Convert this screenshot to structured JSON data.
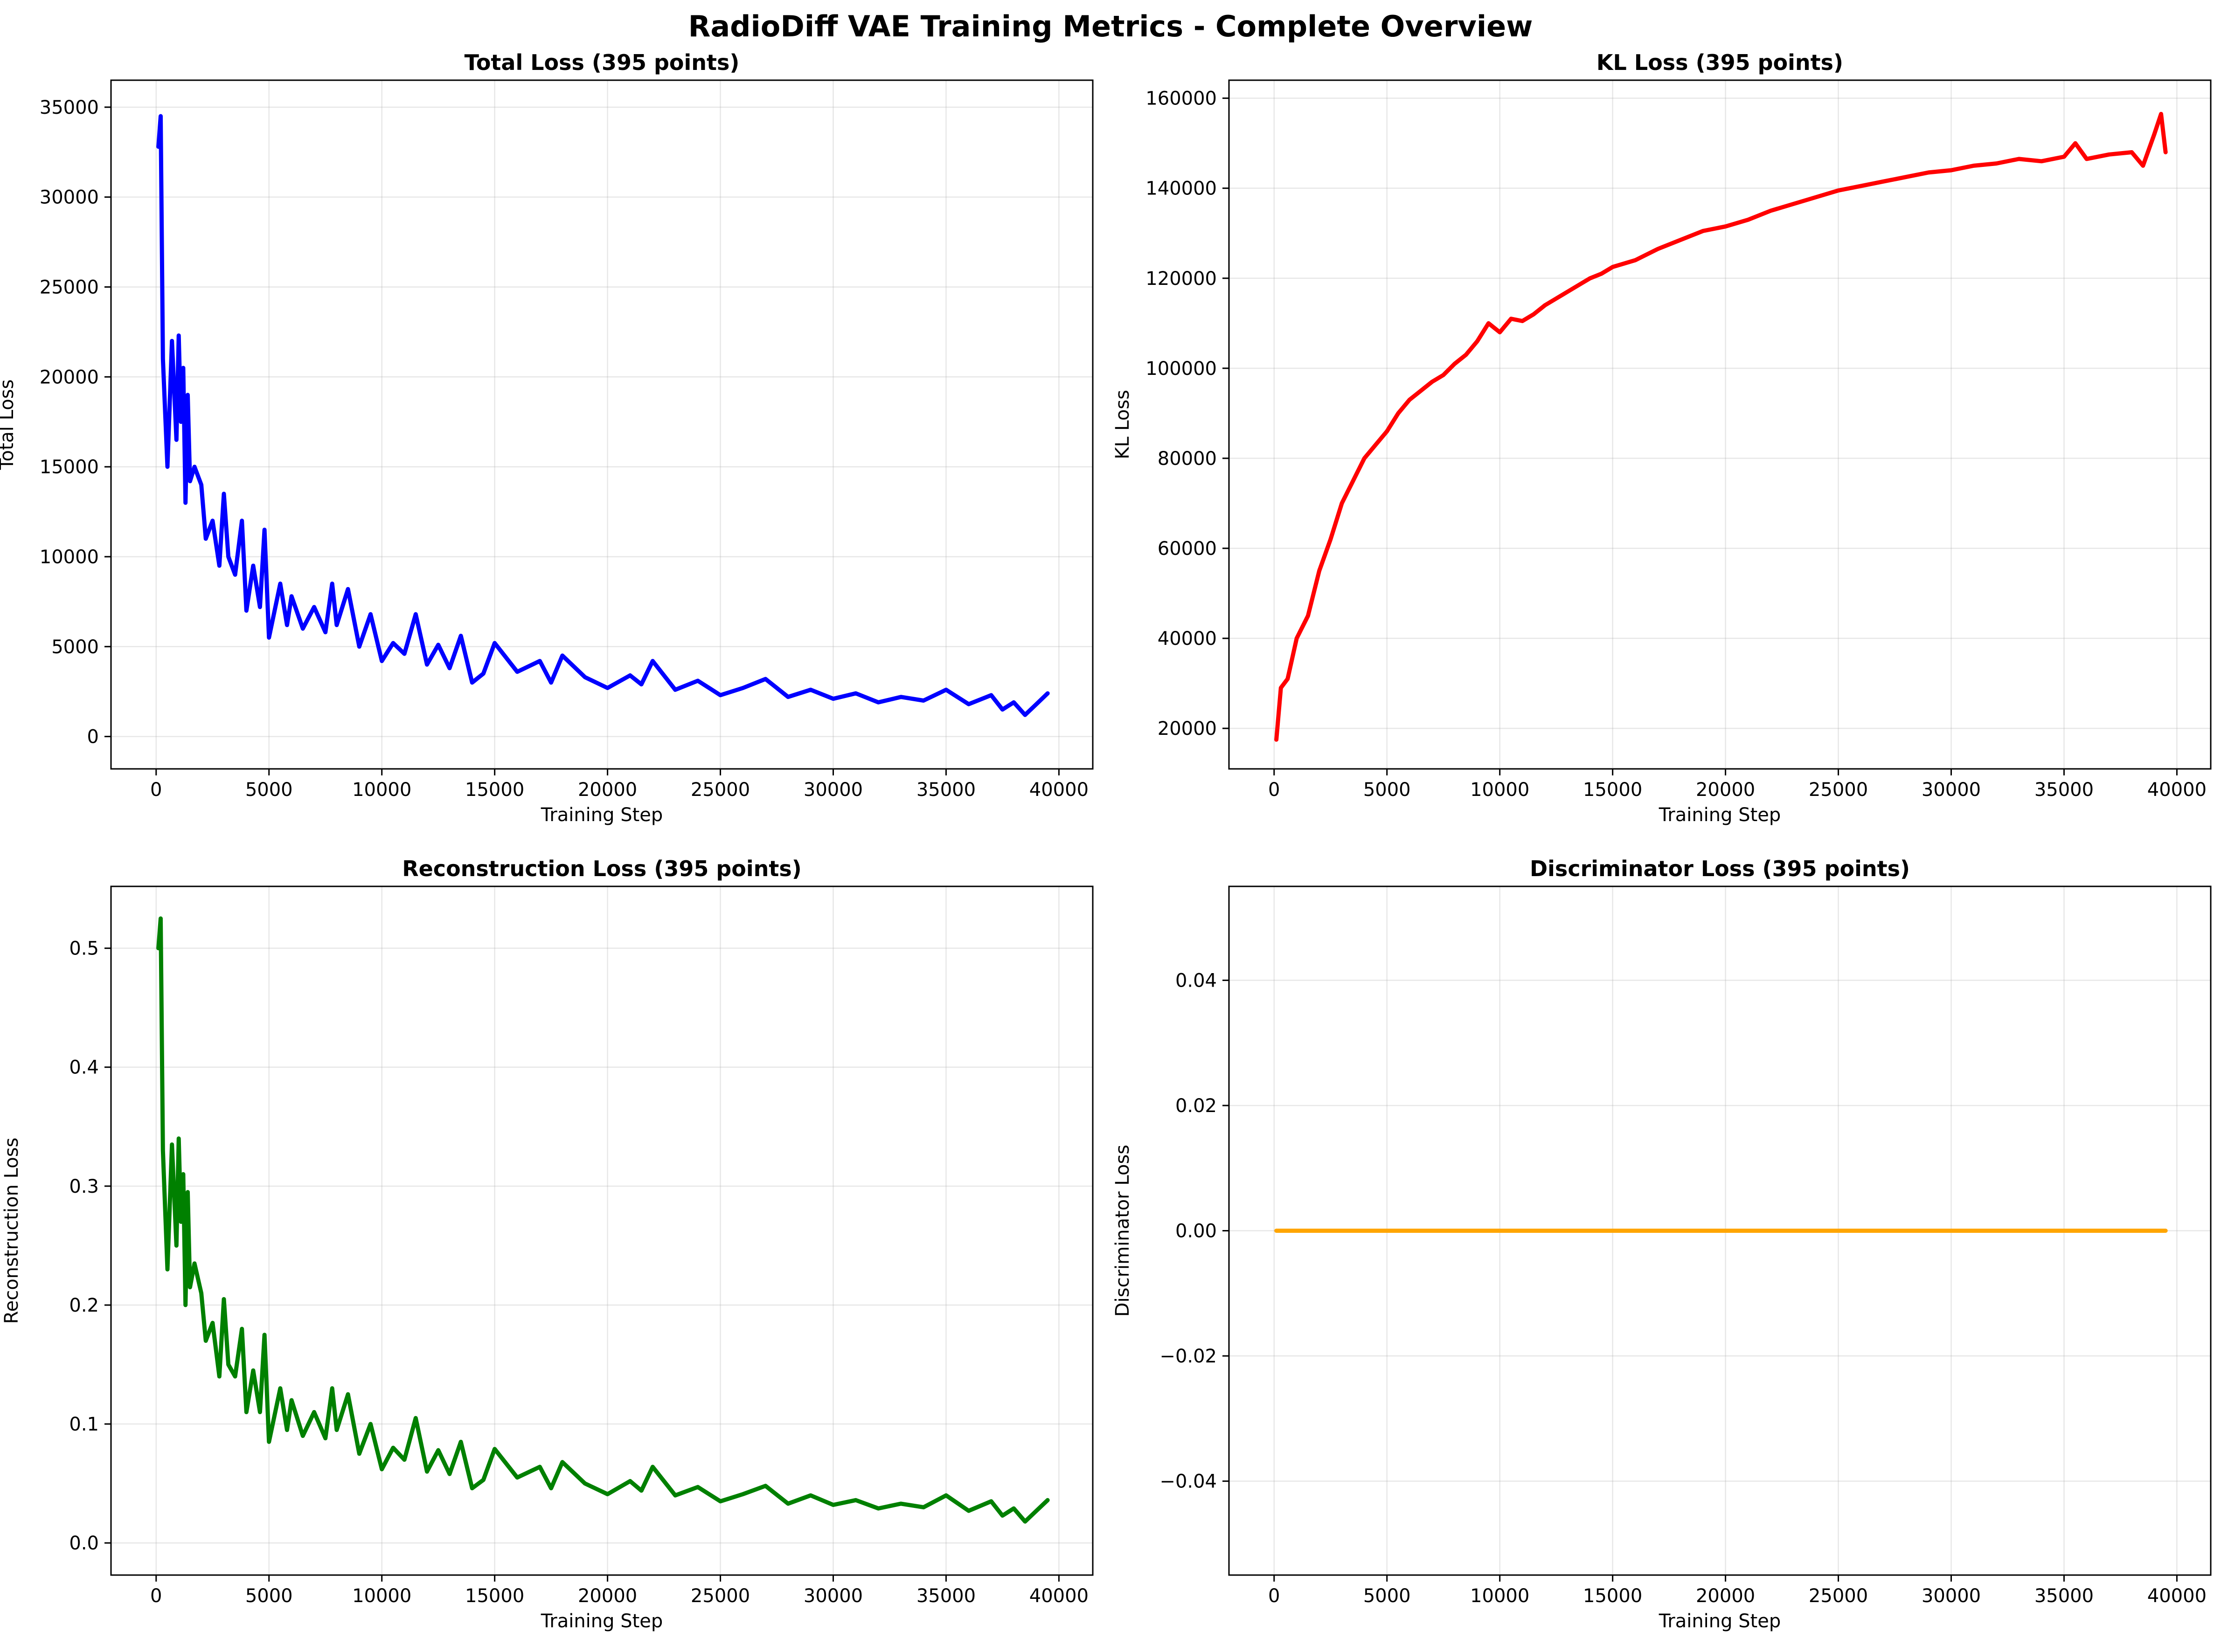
{
  "figure": {
    "title": "RadioDiff VAE Training Metrics - Complete Overview"
  },
  "chart_data": [
    {
      "type": "line",
      "title": "Total Loss (395 points)",
      "xlabel": "Training Step",
      "ylabel": "Total Loss",
      "xlim": [
        -2000,
        41500
      ],
      "ylim": [
        -1800,
        36500
      ],
      "xticks": [
        0,
        5000,
        10000,
        15000,
        20000,
        25000,
        30000,
        35000,
        40000
      ],
      "yticks": [
        0,
        5000,
        10000,
        15000,
        20000,
        25000,
        30000,
        35000
      ],
      "grid": true,
      "color": "#0000ff",
      "series": [
        {
          "x": [
            100,
            200,
            300,
            500,
            700,
            900,
            1000,
            1100,
            1200,
            1300,
            1400,
            1500,
            1700,
            2000,
            2200,
            2500,
            2800,
            3000,
            3200,
            3500,
            3800,
            4000,
            4300,
            4600,
            4800,
            5000,
            5500,
            5800,
            6000,
            6500,
            7000,
            7500,
            7800,
            8000,
            8500,
            9000,
            9500,
            10000,
            10500,
            11000,
            11500,
            12000,
            12500,
            13000,
            13500,
            14000,
            14500,
            15000,
            16000,
            17000,
            17500,
            18000,
            19000,
            20000,
            21000,
            21500,
            22000,
            23000,
            24000,
            25000,
            26000,
            27000,
            28000,
            29000,
            30000,
            31000,
            32000,
            33000,
            34000,
            35000,
            36000,
            37000,
            37500,
            38000,
            38500,
            39000,
            39500
          ],
          "y": [
            32800,
            34500,
            21000,
            15000,
            22000,
            16500,
            22300,
            17500,
            20500,
            13000,
            19000,
            14200,
            15000,
            14000,
            11000,
            12000,
            9500,
            13500,
            10000,
            9000,
            12000,
            7000,
            9500,
            7200,
            11500,
            5500,
            8500,
            6200,
            7800,
            6000,
            7200,
            5800,
            8500,
            6200,
            8200,
            5000,
            6800,
            4200,
            5200,
            4600,
            6800,
            4000,
            5100,
            3800,
            5600,
            3000,
            3500,
            5200,
            3600,
            4200,
            3000,
            4500,
            3300,
            2700,
            3400,
            2900,
            4200,
            2600,
            3100,
            2300,
            2700,
            3200,
            2200,
            2600,
            2100,
            2400,
            1900,
            2200,
            2000,
            2600,
            1800,
            2300,
            1500,
            1900,
            1200,
            1800,
            2400
          ]
        }
      ]
    },
    {
      "type": "line",
      "title": "KL Loss (395 points)",
      "xlabel": "Training Step",
      "ylabel": "KL Loss",
      "xlim": [
        -2000,
        41500
      ],
      "ylim": [
        11000,
        164000
      ],
      "xticks": [
        0,
        5000,
        10000,
        15000,
        20000,
        25000,
        30000,
        35000,
        40000
      ],
      "yticks": [
        20000,
        40000,
        60000,
        80000,
        100000,
        120000,
        140000,
        160000
      ],
      "grid": true,
      "color": "#ff0000",
      "series": [
        {
          "x": [
            100,
            300,
            600,
            1000,
            1500,
            2000,
            2500,
            3000,
            3500,
            4000,
            4500,
            5000,
            5500,
            6000,
            6500,
            7000,
            7500,
            8000,
            8500,
            9000,
            9500,
            10000,
            10500,
            11000,
            11500,
            12000,
            12500,
            13000,
            13500,
            14000,
            14500,
            15000,
            16000,
            17000,
            18000,
            19000,
            20000,
            21000,
            22000,
            23000,
            24000,
            25000,
            26000,
            27000,
            28000,
            29000,
            30000,
            31000,
            32000,
            33000,
            34000,
            35000,
            35500,
            36000,
            37000,
            38000,
            38500,
            39000,
            39300,
            39500
          ],
          "y": [
            17500,
            29000,
            31000,
            40000,
            45000,
            55000,
            62000,
            70000,
            75000,
            80000,
            83000,
            86000,
            90000,
            93000,
            95000,
            97000,
            98500,
            101000,
            103000,
            106000,
            110000,
            108000,
            111000,
            110500,
            112000,
            114000,
            115500,
            117000,
            118500,
            120000,
            121000,
            122500,
            124000,
            126500,
            128500,
            130500,
            131500,
            133000,
            135000,
            136500,
            138000,
            139500,
            140500,
            141500,
            142500,
            143500,
            144000,
            145000,
            145500,
            146500,
            146000,
            147000,
            150000,
            146500,
            147500,
            148000,
            145000,
            152000,
            156500,
            148000
          ]
        }
      ]
    },
    {
      "type": "line",
      "title": "Reconstruction Loss (395 points)",
      "xlabel": "Training Step",
      "ylabel": "Reconstruction Loss",
      "xlim": [
        -2000,
        41500
      ],
      "ylim": [
        -0.027,
        0.552
      ],
      "xticks": [
        0,
        5000,
        10000,
        15000,
        20000,
        25000,
        30000,
        35000,
        40000
      ],
      "yticks": [
        0.0,
        0.1,
        0.2,
        0.3,
        0.4,
        0.5
      ],
      "yticklabels": [
        "0.0",
        "0.1",
        "0.2",
        "0.3",
        "0.4",
        "0.5"
      ],
      "grid": true,
      "color": "#008000",
      "series": [
        {
          "x": [
            100,
            200,
            300,
            500,
            700,
            900,
            1000,
            1100,
            1200,
            1300,
            1400,
            1500,
            1700,
            2000,
            2200,
            2500,
            2800,
            3000,
            3200,
            3500,
            3800,
            4000,
            4300,
            4600,
            4800,
            5000,
            5500,
            5800,
            6000,
            6500,
            7000,
            7500,
            7800,
            8000,
            8500,
            9000,
            9500,
            10000,
            10500,
            11000,
            11500,
            12000,
            12500,
            13000,
            13500,
            14000,
            14500,
            15000,
            16000,
            17000,
            17500,
            18000,
            19000,
            20000,
            21000,
            21500,
            22000,
            23000,
            24000,
            25000,
            26000,
            27000,
            28000,
            29000,
            30000,
            31000,
            32000,
            33000,
            34000,
            35000,
            36000,
            37000,
            37500,
            38000,
            38500,
            39000,
            39500
          ],
          "y": [
            0.5,
            0.525,
            0.33,
            0.23,
            0.335,
            0.25,
            0.34,
            0.27,
            0.31,
            0.2,
            0.295,
            0.215,
            0.235,
            0.21,
            0.17,
            0.185,
            0.14,
            0.205,
            0.15,
            0.14,
            0.18,
            0.11,
            0.145,
            0.11,
            0.175,
            0.085,
            0.13,
            0.095,
            0.12,
            0.09,
            0.11,
            0.088,
            0.13,
            0.095,
            0.125,
            0.075,
            0.1,
            0.062,
            0.08,
            0.07,
            0.105,
            0.06,
            0.078,
            0.058,
            0.085,
            0.046,
            0.053,
            0.079,
            0.055,
            0.064,
            0.046,
            0.068,
            0.05,
            0.041,
            0.052,
            0.044,
            0.064,
            0.04,
            0.047,
            0.035,
            0.041,
            0.048,
            0.033,
            0.04,
            0.032,
            0.036,
            0.029,
            0.033,
            0.03,
            0.04,
            0.027,
            0.035,
            0.023,
            0.029,
            0.018,
            0.027,
            0.036
          ]
        }
      ]
    },
    {
      "type": "line",
      "title": "Discriminator Loss (395 points)",
      "xlabel": "Training Step",
      "ylabel": "Discriminator Loss",
      "xlim": [
        -2000,
        41500
      ],
      "ylim": [
        -0.055,
        0.055
      ],
      "xticks": [
        0,
        5000,
        10000,
        15000,
        20000,
        25000,
        30000,
        35000,
        40000
      ],
      "yticks": [
        -0.04,
        -0.02,
        0.0,
        0.02,
        0.04
      ],
      "yticklabels": [
        "−0.04",
        "−0.02",
        "0.00",
        "0.02",
        "0.04"
      ],
      "grid": true,
      "color": "#ffa500",
      "series": [
        {
          "x": [
            100,
            39500
          ],
          "y": [
            0.0,
            0.0
          ]
        }
      ]
    }
  ]
}
